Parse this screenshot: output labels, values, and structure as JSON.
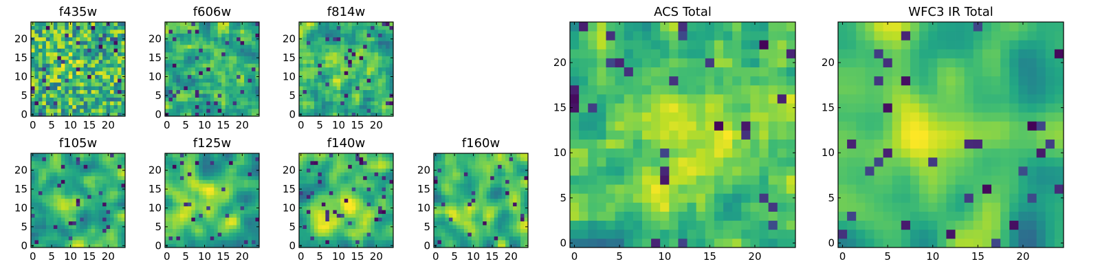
{
  "chart_data": [
    {
      "type": "heatmap",
      "title": "f435w",
      "x_ticks": [
        "0",
        "5",
        "10",
        "15",
        "20"
      ],
      "y_ticks": [
        "0",
        "5",
        "10",
        "15",
        "20"
      ],
      "xlim": [
        0,
        25
      ],
      "ylim": [
        0,
        25
      ],
      "grid_size": 25,
      "colormap": "viridis",
      "pattern": {
        "seed": 11,
        "smoothness": 0.0,
        "hot_x": 10,
        "hot_y": 13,
        "hot_strength": 0.15
      }
    },
    {
      "type": "heatmap",
      "title": "f606w",
      "x_ticks": [
        "0",
        "5",
        "10",
        "15",
        "20"
      ],
      "y_ticks": [
        "0",
        "5",
        "10",
        "15",
        "20"
      ],
      "xlim": [
        0,
        25
      ],
      "ylim": [
        0,
        25
      ],
      "grid_size": 25,
      "colormap": "viridis",
      "pattern": {
        "seed": 23,
        "smoothness": 0.15,
        "hot_x": 12,
        "hot_y": 12,
        "hot_strength": 0.2
      }
    },
    {
      "type": "heatmap",
      "title": "f814w",
      "x_ticks": [
        "0",
        "5",
        "10",
        "15",
        "20"
      ],
      "y_ticks": [
        "0",
        "5",
        "10",
        "15",
        "20"
      ],
      "xlim": [
        0,
        25
      ],
      "ylim": [
        0,
        25
      ],
      "grid_size": 25,
      "colormap": "viridis",
      "pattern": {
        "seed": 37,
        "smoothness": 0.2,
        "hot_x": 13,
        "hot_y": 12,
        "hot_strength": 0.25
      }
    },
    {
      "type": "heatmap",
      "title": "f105w",
      "x_ticks": [
        "0",
        "5",
        "10",
        "15",
        "20"
      ],
      "y_ticks": [
        "0",
        "5",
        "10",
        "15",
        "20"
      ],
      "xlim": [
        0,
        25
      ],
      "ylim": [
        0,
        25
      ],
      "grid_size": 25,
      "colormap": "viridis",
      "pattern": {
        "seed": 41,
        "smoothness": 0.45,
        "hot_x": 10,
        "hot_y": 11,
        "hot_strength": 0.3
      }
    },
    {
      "type": "heatmap",
      "title": "f125w",
      "x_ticks": [
        "0",
        "5",
        "10",
        "15",
        "20"
      ],
      "y_ticks": [
        "0",
        "5",
        "10",
        "15",
        "20"
      ],
      "xlim": [
        0,
        25
      ],
      "ylim": [
        0,
        25
      ],
      "grid_size": 25,
      "colormap": "viridis",
      "pattern": {
        "seed": 53,
        "smoothness": 0.55,
        "hot_x": 11,
        "hot_y": 12,
        "hot_strength": 0.3
      }
    },
    {
      "type": "heatmap",
      "title": "f140w",
      "x_ticks": [
        "0",
        "5",
        "10",
        "15",
        "20"
      ],
      "y_ticks": [
        "0",
        "5",
        "10",
        "15",
        "20"
      ],
      "xlim": [
        0,
        25
      ],
      "ylim": [
        0,
        25
      ],
      "grid_size": 25,
      "colormap": "viridis",
      "pattern": {
        "seed": 67,
        "smoothness": 0.55,
        "hot_x": 11,
        "hot_y": 10,
        "hot_strength": 0.35
      }
    },
    {
      "type": "heatmap",
      "title": "f160w",
      "x_ticks": [
        "0",
        "5",
        "10",
        "15",
        "20"
      ],
      "y_ticks": [
        "0",
        "5",
        "10",
        "15",
        "20"
      ],
      "xlim": [
        0,
        25
      ],
      "ylim": [
        0,
        25
      ],
      "grid_size": 25,
      "colormap": "viridis",
      "pattern": {
        "seed": 79,
        "smoothness": 0.6,
        "hot_x": 8,
        "hot_y": 8,
        "hot_strength": 0.35
      }
    },
    {
      "type": "heatmap",
      "title": "ACS Total",
      "x_ticks": [
        "0",
        "5",
        "10",
        "15",
        "20"
      ],
      "y_ticks": [
        "0",
        "5",
        "10",
        "15",
        "20"
      ],
      "xlim": [
        0,
        25
      ],
      "ylim": [
        0,
        25
      ],
      "grid_size": 25,
      "colormap": "viridis",
      "pattern": {
        "seed": 97,
        "smoothness": 0.25,
        "hot_x": 13,
        "hot_y": 12,
        "hot_strength": 0.3
      }
    },
    {
      "type": "heatmap",
      "title": "WFC3 IR Total",
      "x_ticks": [
        "0",
        "5",
        "10",
        "15",
        "20"
      ],
      "y_ticks": [
        "0",
        "5",
        "10",
        "15",
        "20"
      ],
      "xlim": [
        0,
        25
      ],
      "ylim": [
        0,
        25
      ],
      "grid_size": 25,
      "colormap": "viridis",
      "pattern": {
        "seed": 131,
        "smoothness": 0.7,
        "hot_x": 12,
        "hot_y": 12,
        "hot_strength": 0.45
      }
    }
  ]
}
